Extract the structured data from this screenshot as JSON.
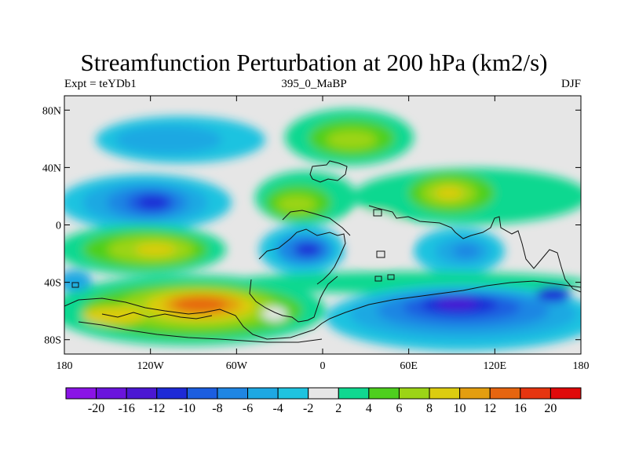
{
  "title": "Streamfunction Perturbation at 200 hPa (km2/s)",
  "subtitle_left": "Expt = teYDb1",
  "subtitle_center": "395_0_MaBP",
  "subtitle_right": "DJF",
  "axes": {
    "x_ticks": [
      "180",
      "120W",
      "60W",
      "0",
      "60E",
      "120E",
      "180"
    ],
    "y_ticks": [
      "80N",
      "40N",
      "0",
      "40S",
      "80S"
    ],
    "x_range": [
      -180,
      180
    ],
    "y_range": [
      -90,
      90
    ]
  },
  "colorbar": {
    "labels": [
      "-20",
      "-16",
      "-12",
      "-10",
      "-8",
      "-6",
      "-4",
      "-2",
      "2",
      "4",
      "6",
      "8",
      "10",
      "12",
      "16",
      "20"
    ],
    "colors": [
      "#8a14e6",
      "#6a14dc",
      "#4b17d3",
      "#1e2ad6",
      "#1c5ee0",
      "#1f86e3",
      "#1ea8e2",
      "#1fc3e0",
      "#e6e6e6",
      "#10d890",
      "#4ecf1e",
      "#9cd416",
      "#dccc10",
      "#e39e10",
      "#e66510",
      "#e63510",
      "#e00a0a"
    ]
  },
  "chart_data": {
    "type": "heatmap",
    "title": "Streamfunction Perturbation at 200 hPa (km2/s)",
    "x_ticks": [
      "180",
      "120W",
      "60W",
      "0",
      "60E",
      "120E",
      "180"
    ],
    "y_ticks": [
      "80N",
      "40N",
      "0",
      "40S",
      "80S"
    ],
    "levels": [
      -20,
      -16,
      -12,
      -10,
      -8,
      -6,
      -4,
      -2,
      2,
      4,
      6,
      8,
      10,
      12,
      16,
      20
    ],
    "features": [
      {
        "kind": "low",
        "lon": -118,
        "lat": 15,
        "min": -12
      },
      {
        "kind": "low",
        "lon": -125,
        "lat": 62,
        "min": -6
      },
      {
        "kind": "low",
        "lon": -10,
        "lat": -17,
        "min": -10
      },
      {
        "kind": "low",
        "lon": 95,
        "lat": -55,
        "min": -18
      },
      {
        "kind": "low",
        "lon": 160,
        "lat": -48,
        "min": -10
      },
      {
        "kind": "low",
        "lon": 90,
        "lat": -20,
        "min": -8
      },
      {
        "kind": "low",
        "lon": -175,
        "lat": -38,
        "min": -6
      },
      {
        "kind": "high",
        "lon": 20,
        "lat": 60,
        "max": 8
      },
      {
        "kind": "high",
        "lon": 90,
        "lat": 22,
        "max": 8
      },
      {
        "kind": "high",
        "lon": -30,
        "lat": 18,
        "max": 6
      },
      {
        "kind": "high",
        "lon": -125,
        "lat": -17,
        "max": 12
      },
      {
        "kind": "high",
        "lon": -95,
        "lat": -55,
        "max": 16
      },
      {
        "kind": "high",
        "lon": -150,
        "lat": -62,
        "max": 8
      }
    ]
  }
}
